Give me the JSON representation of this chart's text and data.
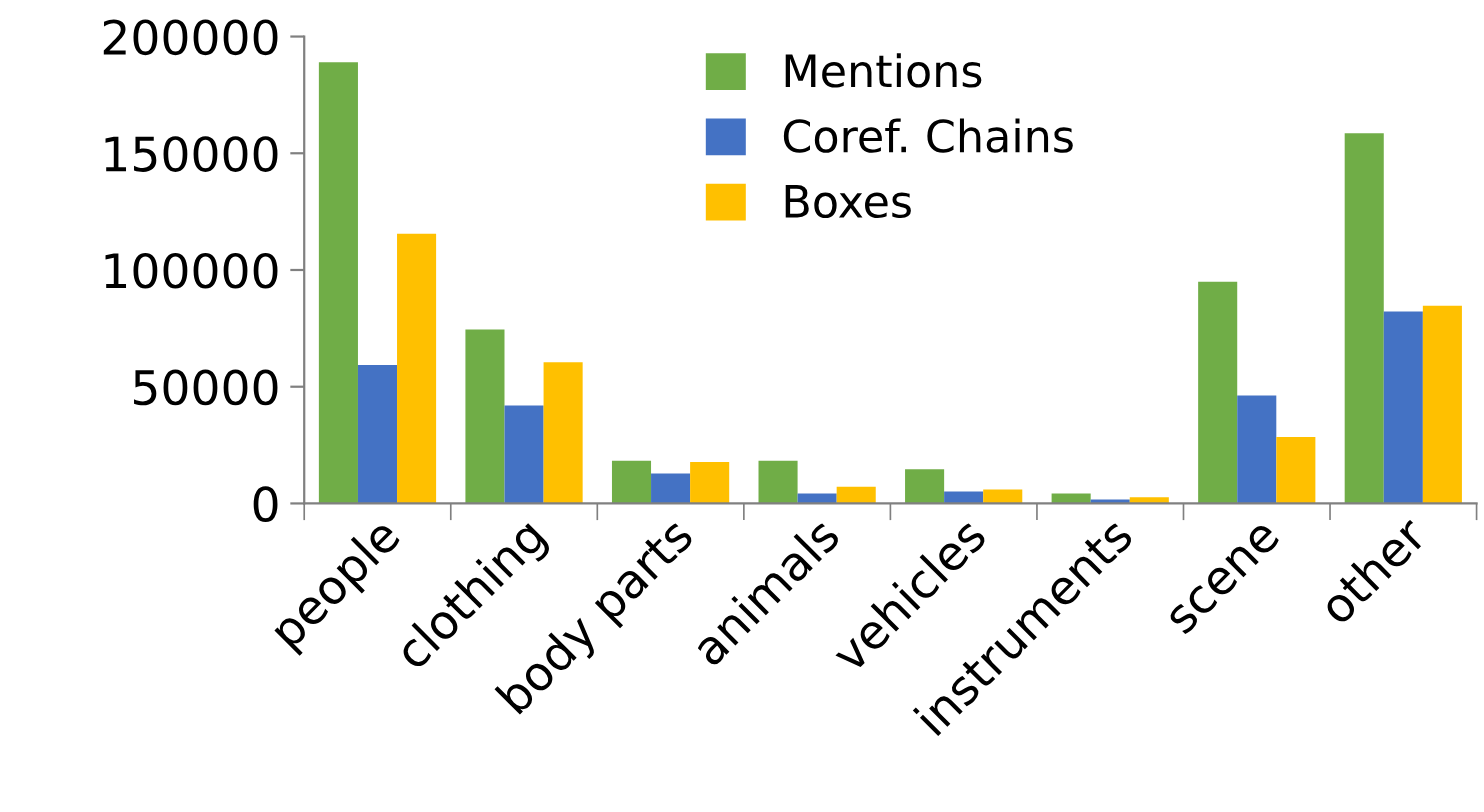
{
  "chart_data": {
    "type": "bar",
    "categories": [
      "people",
      "clothing",
      "body parts",
      "animals",
      "vehicles",
      "instruments",
      "scene",
      "other"
    ],
    "series": [
      {
        "name": "Mentions",
        "color": "#70ad47",
        "values": [
          189000,
          74500,
          18300,
          18300,
          14600,
          4300,
          95000,
          158600
        ]
      },
      {
        "name": "Coref. Chains",
        "color": "#4472c4",
        "values": [
          59300,
          42000,
          12800,
          4300,
          5100,
          1700,
          46200,
          82200
        ]
      },
      {
        "name": "Boxes",
        "color": "#ffc000",
        "values": [
          115500,
          60500,
          17700,
          7100,
          6000,
          2600,
          28500,
          84700
        ]
      }
    ],
    "ylim": [
      0,
      200000
    ],
    "yticks": [
      0,
      50000,
      100000,
      150000,
      200000
    ],
    "grid": false,
    "legend": "top"
  }
}
